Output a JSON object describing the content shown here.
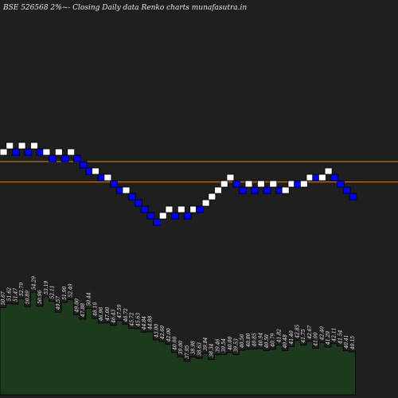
{
  "chart_data": {
    "type": "renko",
    "title": "BSE 526568  2%~-  Closing Daily data  Renko  charts munafasutra.in",
    "box_size_label": "2%",
    "colors": {
      "background": "#1f1f1f",
      "up_brick": "#ffffff",
      "down_brick": "#0000ff",
      "reference_line": "#d2851f",
      "volume_fill": "#1c3a1c",
      "volume_stroke": "#000000",
      "label_text": "#f0f0f0"
    },
    "reference_lines_levels": [
      -1.0,
      -4.2
    ],
    "bricks": [
      {
        "dir": "up",
        "level": 0
      },
      {
        "dir": "up",
        "level": 1
      },
      {
        "dir": "down",
        "level": 0
      },
      {
        "dir": "up",
        "level": 1
      },
      {
        "dir": "down",
        "level": 0
      },
      {
        "dir": "up",
        "level": 1
      },
      {
        "dir": "down",
        "level": 0
      },
      {
        "dir": "up",
        "level": 0
      },
      {
        "dir": "down",
        "level": -1
      },
      {
        "dir": "up",
        "level": 0
      },
      {
        "dir": "down",
        "level": -1
      },
      {
        "dir": "up",
        "level": 0
      },
      {
        "dir": "down",
        "level": -1
      },
      {
        "dir": "down",
        "level": -2
      },
      {
        "dir": "down",
        "level": -3
      },
      {
        "dir": "up",
        "level": -3
      },
      {
        "dir": "down",
        "level": -4
      },
      {
        "dir": "up",
        "level": -4
      },
      {
        "dir": "down",
        "level": -5
      },
      {
        "dir": "down",
        "level": -6
      },
      {
        "dir": "up",
        "level": -6
      },
      {
        "dir": "down",
        "level": -7
      },
      {
        "dir": "down",
        "level": -8
      },
      {
        "dir": "down",
        "level": -9
      },
      {
        "dir": "down",
        "level": -10
      },
      {
        "dir": "down",
        "level": -11
      },
      {
        "dir": "up",
        "level": -10
      },
      {
        "dir": "up",
        "level": -9
      },
      {
        "dir": "down",
        "level": -10
      },
      {
        "dir": "up",
        "level": -9
      },
      {
        "dir": "down",
        "level": -10
      },
      {
        "dir": "up",
        "level": -9
      },
      {
        "dir": "down",
        "level": -9
      },
      {
        "dir": "up",
        "level": -8
      },
      {
        "dir": "up",
        "level": -7
      },
      {
        "dir": "up",
        "level": -6
      },
      {
        "dir": "up",
        "level": -5
      },
      {
        "dir": "up",
        "level": -4
      },
      {
        "dir": "down",
        "level": -5
      },
      {
        "dir": "down",
        "level": -6
      },
      {
        "dir": "up",
        "level": -5
      },
      {
        "dir": "down",
        "level": -6
      },
      {
        "dir": "up",
        "level": -5
      },
      {
        "dir": "down",
        "level": -6
      },
      {
        "dir": "up",
        "level": -5
      },
      {
        "dir": "down",
        "level": -6
      },
      {
        "dir": "up",
        "level": -6
      },
      {
        "dir": "up",
        "level": -5
      },
      {
        "dir": "down",
        "level": -5
      },
      {
        "dir": "up",
        "level": -5
      },
      {
        "dir": "up",
        "level": -4
      },
      {
        "dir": "down",
        "level": -4
      },
      {
        "dir": "up",
        "level": -4
      },
      {
        "dir": "up",
        "level": -3
      },
      {
        "dir": "down",
        "level": -4
      },
      {
        "dir": "down",
        "level": -5
      },
      {
        "dir": "down",
        "level": -6
      },
      {
        "dir": "down",
        "level": -7
      }
    ],
    "volume_labels": [
      "50.67",
      "51.62",
      "51.47",
      "52.79",
      "50.89",
      "54.29",
      "50.96",
      "53.19",
      "52.11",
      "49.57",
      "51.90",
      "52.49",
      "49.00",
      "47.88",
      "50.44",
      "48.10",
      "46.96",
      "47.00",
      "46.43",
      "47.59",
      "46.72",
      "45.72",
      "45.63",
      "44.84",
      "44.88",
      "43.00",
      "42.60",
      "42.00",
      "40.00",
      "39.00",
      "37.95",
      "38.98",
      "38.63",
      "39.84",
      "38.34",
      "39.46",
      "39.54",
      "40.00",
      "39.53",
      "40.56",
      "40.80",
      "40.85",
      "40.94",
      "40.50",
      "40.79",
      "41.82",
      "40.48",
      "41.40",
      "42.85",
      "41.75",
      "42.67",
      "41.00",
      "42.40",
      "41.29",
      "42.11",
      "41.54",
      "40.41",
      "40.15"
    ]
  }
}
